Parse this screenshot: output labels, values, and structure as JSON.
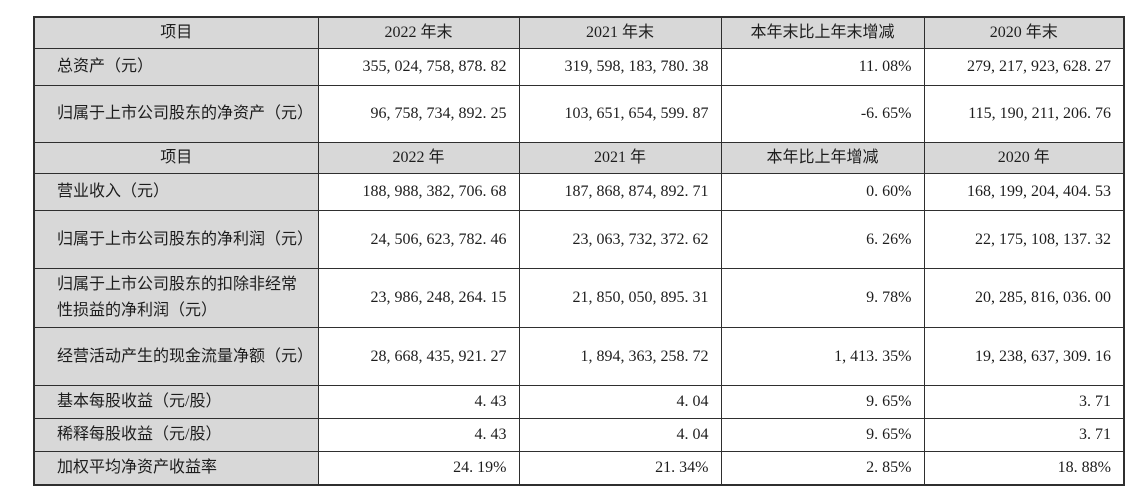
{
  "colors": {
    "cell_shade": "#d8d8d8",
    "border": "#2f2f2f",
    "text": "#1d1d1d",
    "page_background": "#ffffff"
  },
  "table": {
    "sections": [
      {
        "header": [
          "项目",
          "2022 年末",
          "2021 年末",
          "本年末比上年末增减",
          "2020 年末"
        ],
        "rows": [
          {
            "label": "总资产（元）",
            "values": [
              "355, 024, 758, 878. 82",
              "319, 598, 183, 780. 38",
              "11. 08%",
              "279, 217, 923, 628. 27"
            ]
          },
          {
            "label": "归属于上市公司股东的净资产（元）",
            "values": [
              "96, 758, 734, 892. 25",
              "103, 651, 654, 599. 87",
              "-6. 65%",
              "115, 190, 211, 206. 76"
            ]
          }
        ]
      },
      {
        "header": [
          "项目",
          "2022 年",
          "2021 年",
          "本年比上年增减",
          "2020 年"
        ],
        "rows": [
          {
            "label": "营业收入（元）",
            "values": [
              "188, 988, 382, 706. 68",
              "187, 868, 874, 892. 71",
              "0. 60%",
              "168, 199, 204, 404. 53"
            ]
          },
          {
            "label": "归属于上市公司股东的净利润（元）",
            "values": [
              "24, 506, 623, 782. 46",
              "23, 063, 732, 372. 62",
              "6. 26%",
              "22, 175, 108, 137. 32"
            ]
          },
          {
            "label": "归属于上市公司股东的扣除非经常性损益的净利润（元）",
            "values": [
              "23, 986, 248, 264. 15",
              "21, 850, 050, 895. 31",
              "9. 78%",
              "20, 285, 816, 036. 00"
            ]
          },
          {
            "label": "经营活动产生的现金流量净额（元）",
            "values": [
              "28, 668, 435, 921. 27",
              "1, 894, 363, 258. 72",
              "1, 413. 35%",
              "19, 238, 637, 309. 16"
            ]
          },
          {
            "label": "基本每股收益（元/股）",
            "values": [
              "4. 43",
              "4. 04",
              "9. 65%",
              "3. 71"
            ]
          },
          {
            "label": "稀释每股收益（元/股）",
            "values": [
              "4. 43",
              "4. 04",
              "9. 65%",
              "3. 71"
            ]
          },
          {
            "label": "加权平均净资产收益率",
            "values": [
              "24. 19%",
              "21. 34%",
              "2. 85%",
              "18. 88%"
            ]
          }
        ]
      }
    ]
  }
}
